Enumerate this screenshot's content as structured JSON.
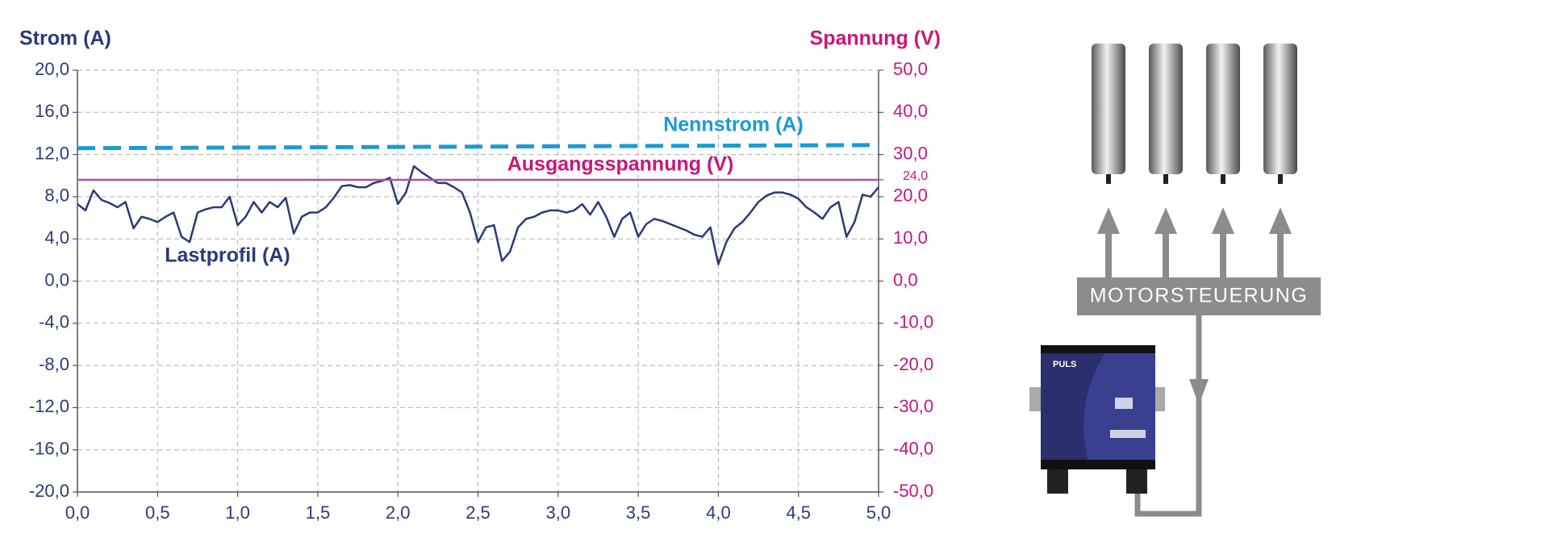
{
  "chart_data": {
    "type": "line",
    "ylabel": "Strom (A)",
    "y2label": "Spannung (V)",
    "xlim": [
      0,
      5
    ],
    "ylim": [
      -20,
      20
    ],
    "y2lim": [
      -50,
      50
    ],
    "grid": true,
    "xticks": [
      {
        "value": 0,
        "label": "0,0"
      },
      {
        "value": 0.5,
        "label": "0,5"
      },
      {
        "value": 1,
        "label": "1,0"
      },
      {
        "value": 1.5,
        "label": "1,5"
      },
      {
        "value": 2,
        "label": "2,0"
      },
      {
        "value": 2.5,
        "label": "2,5"
      },
      {
        "value": 3,
        "label": "3,0"
      },
      {
        "value": 3.5,
        "label": "3,5"
      },
      {
        "value": 4,
        "label": "4,0"
      },
      {
        "value": 4.5,
        "label": "4,5"
      },
      {
        "value": 5,
        "label": "5,0"
      }
    ],
    "yticks": [
      {
        "value": 20,
        "label": "20,0"
      },
      {
        "value": 16,
        "label": "16,0"
      },
      {
        "value": 12,
        "label": "12,0"
      },
      {
        "value": 8,
        "label": "8,0"
      },
      {
        "value": 4,
        "label": "4,0"
      },
      {
        "value": 0,
        "label": "0,0"
      },
      {
        "value": -4,
        "label": "-4,0"
      },
      {
        "value": -8,
        "label": "-8,0"
      },
      {
        "value": -12,
        "label": "-12,0"
      },
      {
        "value": -16,
        "label": "-16,0"
      },
      {
        "value": -20,
        "label": "-20,0"
      }
    ],
    "y2ticks": [
      {
        "value": 50,
        "label": "50,0"
      },
      {
        "value": 40,
        "label": "40,0"
      },
      {
        "value": 30,
        "label": "30,0"
      },
      {
        "value": 24,
        "label": "24,0"
      },
      {
        "value": 20,
        "label": "20,0"
      },
      {
        "value": 10,
        "label": "10,0"
      },
      {
        "value": 0,
        "label": "0,0"
      },
      {
        "value": -10,
        "label": "-10,0"
      },
      {
        "value": -20,
        "label": "-20,0"
      },
      {
        "value": -30,
        "label": "-30,0"
      },
      {
        "value": -40,
        "label": "-40,0"
      },
      {
        "value": -50,
        "label": "-50,0"
      }
    ],
    "series": [
      {
        "name": "Lastprofil (A)",
        "color": "#2b3a7a",
        "x": [
          0,
          0.05,
          0.1,
          0.15,
          0.2,
          0.25,
          0.3,
          0.35,
          0.4,
          0.45,
          0.5,
          0.55,
          0.6,
          0.65,
          0.7,
          0.75,
          0.8,
          0.85,
          0.9,
          0.95,
          1,
          1.05,
          1.1,
          1.15,
          1.2,
          1.25,
          1.3,
          1.35,
          1.4,
          1.45,
          1.5,
          1.55,
          1.6,
          1.65,
          1.7,
          1.75,
          1.8,
          1.85,
          1.9,
          1.95,
          2,
          2.05,
          2.1,
          2.15,
          2.2,
          2.25,
          2.3,
          2.35,
          2.4,
          2.45,
          2.5,
          2.55,
          2.6,
          2.65,
          2.7,
          2.75,
          2.8,
          2.85,
          2.9,
          2.95,
          3,
          3.05,
          3.1,
          3.15,
          3.2,
          3.25,
          3.3,
          3.35,
          3.4,
          3.45,
          3.5,
          3.55,
          3.6,
          3.65,
          3.7,
          3.75,
          3.8,
          3.85,
          3.9,
          3.95,
          4,
          4.05,
          4.1,
          4.15,
          4.2,
          4.25,
          4.3,
          4.35,
          4.4,
          4.45,
          4.5,
          4.55,
          4.6,
          4.65,
          4.7,
          4.75,
          4.8,
          4.85,
          4.9,
          4.95,
          5
        ],
        "values": [
          7.3,
          6.7,
          8.6,
          7.7,
          7.4,
          7.0,
          7.5,
          5.0,
          6.1,
          5.9,
          5.6,
          6.1,
          6.5,
          4.2,
          3.7,
          6.5,
          6.8,
          7.0,
          7.0,
          8.0,
          5.3,
          6.1,
          7.5,
          6.5,
          7.5,
          7.0,
          7.9,
          4.5,
          6.1,
          6.5,
          6.5,
          7.0,
          7.9,
          9.0,
          9.1,
          8.9,
          8.9,
          9.3,
          9.5,
          9.8,
          7.3,
          8.4,
          10.9,
          10.3,
          9.8,
          9.3,
          9.3,
          8.9,
          8.4,
          6.5,
          3.7,
          5.1,
          5.3,
          1.9,
          2.8,
          5.1,
          5.9,
          6.1,
          6.5,
          6.7,
          6.7,
          6.5,
          6.7,
          7.3,
          6.3,
          7.5,
          6.1,
          4.2,
          5.9,
          6.5,
          4.2,
          5.4,
          5.9,
          5.7,
          5.4,
          5.1,
          4.8,
          4.4,
          4.2,
          5.1,
          1.6,
          3.7,
          5.0,
          5.6,
          6.5,
          7.5,
          8.1,
          8.4,
          8.4,
          8.2,
          7.8,
          7.0,
          6.5,
          5.9,
          7.0,
          7.5,
          4.2,
          5.6,
          8.2,
          8.0,
          8.9
        ]
      },
      {
        "name": "Ausgangsspannung (V)",
        "color": "#a455a8",
        "axis": "y2",
        "x": [
          0,
          5
        ],
        "values": [
          24,
          24
        ]
      },
      {
        "name": "Nennstrom (A)",
        "color": "#1a9bd7",
        "dashed": true,
        "x": [
          0,
          5
        ],
        "values": [
          12.6,
          12.9
        ]
      }
    ]
  },
  "diagram": {
    "label": "MOTORSTEUERUNG",
    "device_brand": "PULS"
  }
}
